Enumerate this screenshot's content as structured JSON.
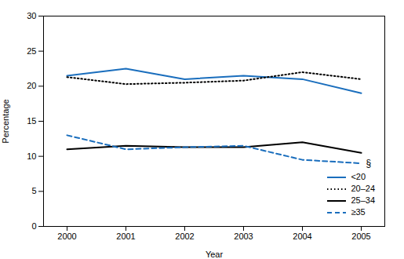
{
  "chart_data": {
    "type": "line",
    "xlabel": "Year",
    "ylabel": "Percentage",
    "x": [
      2000,
      2001,
      2002,
      2003,
      2004,
      2005
    ],
    "series": [
      {
        "name": "<20",
        "color": "#1a6ebd",
        "line_style": "solid",
        "values": [
          21.5,
          22.5,
          21.0,
          21.5,
          21.0,
          19.0
        ]
      },
      {
        "name": "20–24",
        "color": "#000000",
        "line_style": "dotted",
        "values": [
          21.3,
          20.3,
          20.5,
          20.8,
          22.0,
          21.0
        ]
      },
      {
        "name": "25–34",
        "color": "#000000",
        "line_style": "solid",
        "values": [
          11.0,
          11.5,
          11.3,
          11.3,
          12.0,
          10.5
        ]
      },
      {
        "name": "≥35",
        "color": "#1a6ebd",
        "line_style": "dashed",
        "values": [
          13.0,
          11.0,
          11.3,
          11.5,
          9.5,
          9.0
        ]
      }
    ],
    "xlim": [
      1999.6,
      2005.4
    ],
    "xticks": [
      2000,
      2001,
      2002,
      2003,
      2004,
      2005
    ],
    "ylim": [
      0,
      30
    ],
    "yticks": [
      0,
      5,
      10,
      15,
      20,
      25,
      30
    ],
    "annotations": [
      {
        "text": "§",
        "x": 2005,
        "y": 9.0
      }
    ],
    "legend": "lower right",
    "grid": false
  }
}
